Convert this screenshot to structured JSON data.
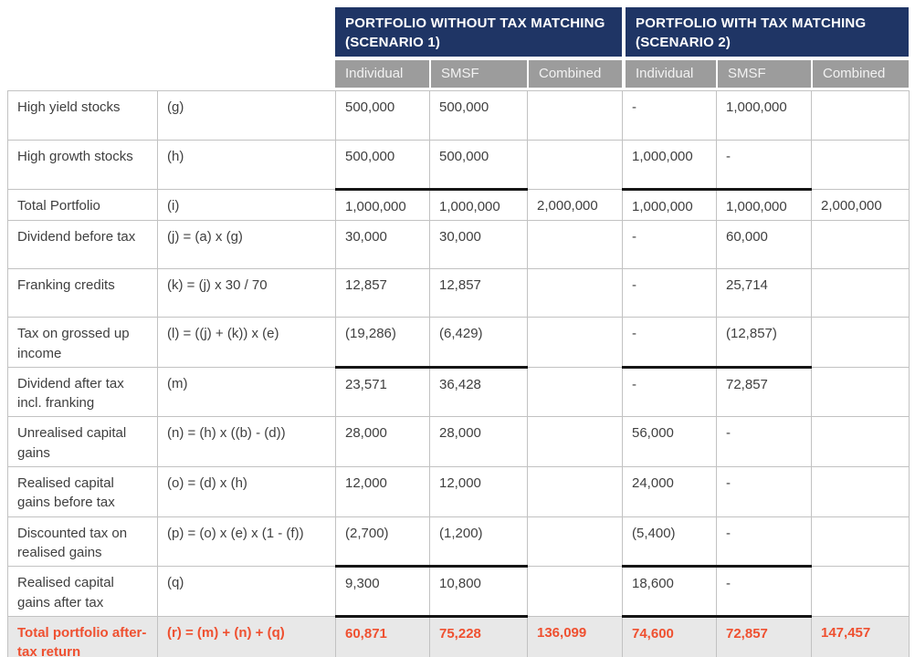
{
  "table": {
    "scenario1_title": "PORTFOLIO WITHOUT TAX MATCHING (SCENARIO 1)",
    "scenario2_title": "PORTFOLIO WITH TAX MATCHING (SCENARIO 2)",
    "subcolumns": [
      "Individual",
      "SMSF",
      "Combined",
      "Individual",
      "SMSF",
      "Combined"
    ],
    "rows": [
      {
        "label": "High yield stocks",
        "formula": "(g)",
        "values": [
          "500,000",
          "500,000",
          "",
          "-",
          "1,000,000",
          ""
        ]
      },
      {
        "label": "High growth stocks",
        "formula": "(h)",
        "values": [
          "500,000",
          "500,000",
          "",
          "1,000,000",
          "-",
          ""
        ]
      },
      {
        "label": "Total Portfolio",
        "formula": "(i)",
        "values": [
          "1,000,000",
          "1,000,000",
          "2,000,000",
          "1,000,000",
          "1,000,000",
          "2,000,000"
        ],
        "sum_line": true
      },
      {
        "label": "Dividend before tax",
        "formula": "(j) = (a) x (g)",
        "values": [
          "30,000",
          "30,000",
          "",
          "-",
          "60,000",
          ""
        ]
      },
      {
        "label": "Franking credits",
        "formula": "(k) = (j) x 30 / 70",
        "values": [
          "12,857",
          "12,857",
          "",
          "-",
          "25,714",
          ""
        ]
      },
      {
        "label": "Tax on grossed up income",
        "formula": "(l) = ((j) + (k)) x (e)",
        "values": [
          "(19,286)",
          "(6,429)",
          "",
          "-",
          "(12,857)",
          ""
        ]
      },
      {
        "label": "Dividend after tax incl. franking",
        "formula": "(m)",
        "values": [
          "23,571",
          "36,428",
          "",
          "-",
          "72,857",
          ""
        ],
        "sum_line": true
      },
      {
        "label": "Unrealised capital gains",
        "formula": "(n) = (h) x ((b) - (d))",
        "values": [
          "28,000",
          "28,000",
          "",
          "56,000",
          "-",
          ""
        ]
      },
      {
        "label": "Realised capital gains before tax",
        "formula": "(o) = (d) x (h)",
        "values": [
          "12,000",
          "12,000",
          "",
          "24,000",
          "-",
          ""
        ]
      },
      {
        "label": "Discounted tax on realised gains",
        "formula": "(p) = (o) x (e) x (1 - (f))",
        "values": [
          "(2,700)",
          "(1,200)",
          "",
          "(5,400)",
          "-",
          ""
        ]
      },
      {
        "label": "Realised capital gains after tax",
        "formula": "(q)",
        "values": [
          "9,300",
          "10,800",
          "",
          "18,600",
          "-",
          ""
        ],
        "sum_line": true
      },
      {
        "label": "Total portfolio after-tax return",
        "formula": "(r) = (m) + (n) + (q)",
        "values": [
          "60,871",
          "75,228",
          "136,099",
          "74,600",
          "72,857",
          "147,457"
        ],
        "total": true
      }
    ]
  },
  "colors": {
    "header_navy": "#1F3565",
    "header_gray": "#9C9C9C",
    "accent_orange": "#EF5030",
    "total_row_bg": "#E8E8E8",
    "body_text": "#3F3F3F",
    "border_thin": "#C2C2C2",
    "border_thick": "#161616"
  }
}
